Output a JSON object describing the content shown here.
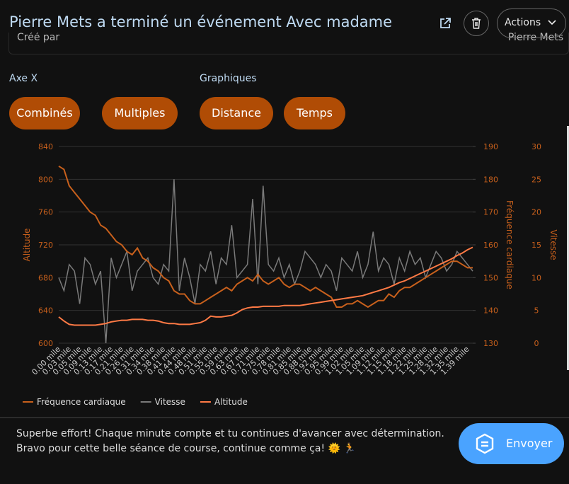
{
  "header": {
    "title": "Pierre Mets a terminé un événement Avec madame",
    "created_by_label": "Créé par",
    "created_by": "Pierre Mets",
    "actions": "Actions"
  },
  "controls": {
    "x_axis_label": "Axe X",
    "x_axis_options": [
      "Combinés",
      "Multiples"
    ],
    "charts_label": "Graphiques",
    "chart_options": [
      "Distance",
      "Temps"
    ]
  },
  "chart_data": {
    "type": "line",
    "categories": [
      "0.00 mile",
      null,
      "0.03 mile",
      null,
      "0.05 mile",
      null,
      "0.09 mile",
      null,
      "0.13 mile",
      null,
      "0.17 mile",
      null,
      "0.21 mile",
      null,
      "0.26 mile",
      null,
      "0.31 mile",
      null,
      "0.34 mile",
      null,
      "0.38 mile",
      null,
      "0.41 mile",
      null,
      "0.44 mile",
      null,
      "0.48 mile",
      null,
      "0.51 mile",
      null,
      "0.55 mile",
      null,
      "0.59 mile",
      null,
      "0.63 mile",
      null,
      "0.67 mile",
      null,
      "0.71 mile",
      null,
      "0.75 mile",
      null,
      "0.78 mile",
      null,
      "0.81 mile",
      null,
      "0.85 mile",
      null,
      "0.88 mile",
      null,
      "0.92 mile",
      null,
      "0.95 mile",
      null,
      "0.99 mile",
      null,
      "1.02 mile",
      null,
      "1.05 mile",
      null,
      "1.09 mile",
      null,
      "1.12 mile",
      null,
      "1.15 mile",
      null,
      "1.18 mile",
      null,
      "1.22 mile",
      null,
      "1.25 mile",
      null,
      "1.28 mile",
      null,
      "1.32 mile",
      null,
      "1.35 mile",
      null,
      "1.39 mile",
      null
    ],
    "series": [
      {
        "name": "Fréquence cardiaque",
        "color": "#c8601c",
        "axis": "y2",
        "values": [
          184,
          183,
          178,
          176,
          174,
          172,
          170,
          169,
          166,
          165,
          163,
          161,
          160,
          158,
          157,
          159,
          156,
          155,
          153,
          152,
          150,
          149,
          146,
          145,
          145,
          143,
          142,
          142,
          143,
          144,
          145,
          146,
          147,
          146,
          148,
          149,
          150,
          149,
          151,
          149,
          148,
          149,
          150,
          148,
          147,
          148,
          148,
          147,
          146,
          147,
          146,
          145,
          144,
          141,
          141,
          142,
          142,
          143,
          142,
          141,
          142,
          143,
          143,
          145,
          144,
          146,
          147,
          147,
          148,
          149,
          150,
          151,
          152,
          153,
          154,
          155,
          155,
          154,
          153,
          153
        ]
      },
      {
        "name": "Vitesse",
        "color": "#7a7a7a",
        "axis": "y3",
        "values": [
          10,
          8,
          12,
          11,
          6,
          13,
          12,
          9,
          11,
          0,
          13,
          10,
          12,
          14,
          8,
          11,
          12,
          13,
          10,
          9,
          12,
          11,
          25,
          8,
          13,
          10,
          6,
          12,
          11,
          14,
          9,
          13,
          12,
          18,
          10,
          11,
          12,
          22,
          9,
          24,
          12,
          11,
          13,
          10,
          12,
          9,
          11,
          14,
          13,
          12,
          10,
          12,
          11,
          8,
          13,
          12,
          11,
          14,
          10,
          12,
          17,
          11,
          13,
          12,
          9,
          13,
          11,
          14,
          12,
          13,
          10,
          12,
          14,
          13,
          11,
          12,
          14,
          13,
          12,
          11
        ]
      },
      {
        "name": "Altitude",
        "color": "#ff7a45",
        "axis": "y",
        "values": [
          632,
          627,
          623,
          622,
          622,
          622,
          622,
          622,
          623,
          624,
          626,
          627,
          628,
          628,
          629,
          629,
          629,
          628,
          628,
          627,
          625,
          624,
          624,
          623,
          623,
          623,
          624,
          625,
          628,
          633,
          632,
          632,
          633,
          634,
          637,
          641,
          643,
          644,
          644,
          645,
          645,
          645,
          645,
          646,
          646,
          646,
          646,
          647,
          648,
          649,
          650,
          651,
          652,
          653,
          654,
          655,
          656,
          657,
          658,
          660,
          662,
          664,
          666,
          668,
          671,
          674,
          676,
          679,
          682,
          685,
          688,
          691,
          694,
          697,
          700,
          703,
          707,
          710,
          714,
          717
        ]
      }
    ],
    "ylabel": "Altitude",
    "ylim": [
      600,
      840
    ],
    "yticks": [
      600,
      640,
      680,
      720,
      760,
      800,
      840
    ],
    "y2label": "Fréquence cardiaque",
    "y2lim": [
      130,
      190
    ],
    "y2ticks": [
      130,
      140,
      150,
      160,
      170,
      180,
      190
    ],
    "y3label": "Vitesse",
    "y3lim": [
      0,
      30
    ],
    "y3ticks": [
      0,
      5,
      10,
      15,
      20,
      25,
      30
    ],
    "grid": true,
    "legend": "bottom"
  },
  "comment": {
    "lines": [
      "Superbe effort! Chaque minute compte et tu continues d'avancer avec détermination.",
      "Bravo pour cette belle séance de course, continue comme ça! 🌞 🏃"
    ],
    "button": "Envoyer"
  }
}
